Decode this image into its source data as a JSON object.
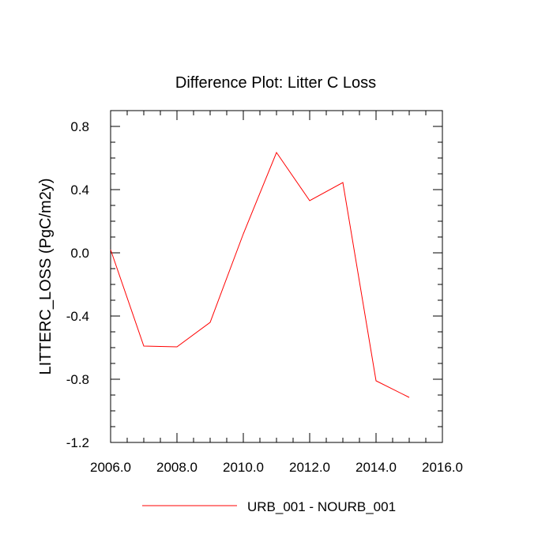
{
  "chart_data": {
    "type": "line",
    "title": "Difference Plot: Litter C Loss",
    "xlabel": "",
    "ylabel": "LITTERC_LOSS  (PgC/m2y)",
    "xlim": [
      2006,
      2016
    ],
    "ylim": [
      -1.2,
      0.9
    ],
    "x_ticks": [
      2006,
      2008,
      2010,
      2012,
      2014,
      2016
    ],
    "x_tick_labels": [
      "2006.0",
      "2008.0",
      "2010.0",
      "2012.0",
      "2014.0",
      "2016.0"
    ],
    "y_ticks": [
      -1.2,
      -0.8,
      -0.4,
      0.0,
      0.4,
      0.8
    ],
    "y_tick_labels": [
      "-1.2",
      "-0.8",
      "-0.4",
      "0.0",
      "0.4",
      "0.8"
    ],
    "grid": false,
    "legend_position": "bottom",
    "x": [
      2006,
      2007,
      2008,
      2009,
      2010,
      2011,
      2012,
      2013,
      2014,
      2015
    ],
    "series": [
      {
        "name": "URB_001 - NOURB_001",
        "color": "#ff0000",
        "values": [
          0.02,
          -0.59,
          -0.595,
          -0.44,
          0.12,
          0.635,
          0.33,
          0.445,
          -0.81,
          -0.915
        ]
      }
    ]
  }
}
